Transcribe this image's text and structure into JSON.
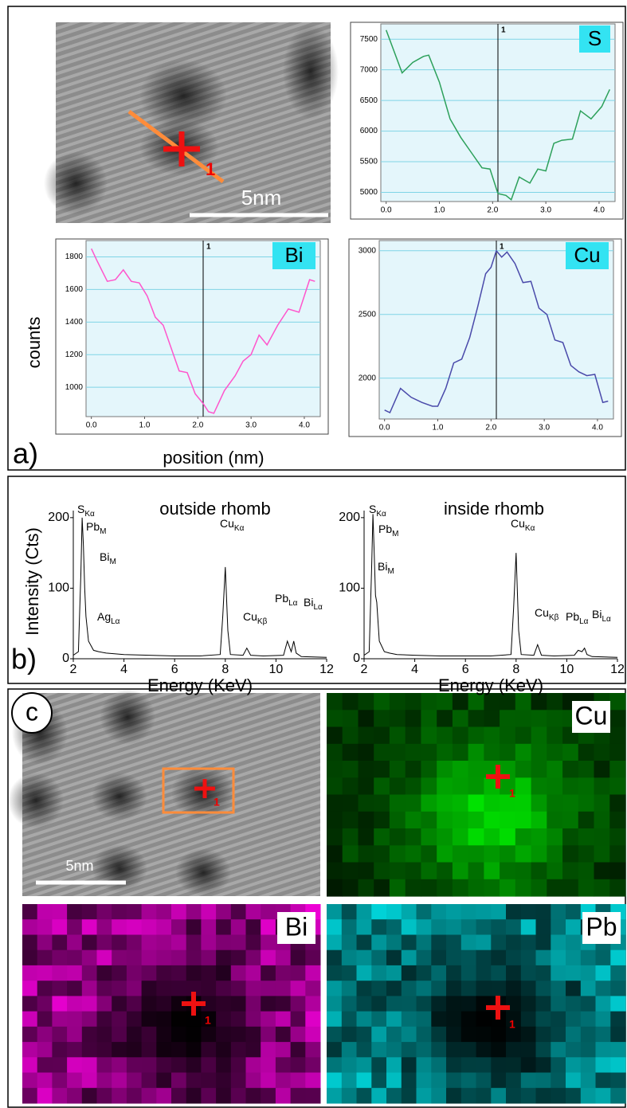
{
  "chart_data": [
    {
      "type": "line",
      "label": "S",
      "color": "#2ca05a",
      "grid": true,
      "x": [
        0,
        0.3,
        0.5,
        0.7,
        0.8,
        1.0,
        1.2,
        1.4,
        1.6,
        1.8,
        1.95,
        2.1,
        2.25,
        2.35,
        2.5,
        2.7,
        2.85,
        3.0,
        3.15,
        3.3,
        3.5,
        3.65,
        3.85,
        4.05,
        4.2
      ],
      "values": [
        7650,
        6950,
        7120,
        7220,
        7240,
        6800,
        6200,
        5900,
        5650,
        5400,
        5380,
        4980,
        4950,
        4880,
        5250,
        5150,
        5380,
        5350,
        5800,
        5850,
        5870,
        6330,
        6200,
        6400,
        6680
      ],
      "xlim": [
        -0.1,
        4.3
      ],
      "ylim": [
        4850,
        7750
      ],
      "xticks": [
        {
          "value": 0,
          "label": "0.0"
        },
        {
          "value": 1,
          "label": "1.0"
        },
        {
          "value": 2,
          "label": "2.0"
        },
        {
          "value": 3,
          "label": "3.0"
        },
        {
          "value": 4,
          "label": "4.0"
        }
      ],
      "yticks": [
        5000,
        5500,
        6000,
        6500,
        7000,
        7500
      ],
      "marker": {
        "value": 2.1,
        "label": "1"
      }
    },
    {
      "type": "line",
      "label": "Bi",
      "color": "#ff55cc",
      "grid": true,
      "x": [
        0,
        0.1,
        0.3,
        0.45,
        0.6,
        0.75,
        0.9,
        1.05,
        1.2,
        1.35,
        1.5,
        1.65,
        1.8,
        1.95,
        2.1,
        2.2,
        2.3,
        2.5,
        2.7,
        2.85,
        3.0,
        3.15,
        3.3,
        3.5,
        3.7,
        3.9,
        4.1,
        4.2
      ],
      "values": [
        1850,
        1780,
        1650,
        1660,
        1720,
        1650,
        1640,
        1560,
        1430,
        1380,
        1240,
        1100,
        1090,
        960,
        900,
        850,
        840,
        980,
        1070,
        1160,
        1200,
        1320,
        1260,
        1380,
        1480,
        1460,
        1660,
        1650
      ],
      "xlim": [
        -0.1,
        4.3
      ],
      "ylim": [
        820,
        1900
      ],
      "xticks": [
        {
          "value": 0,
          "label": "0.0"
        },
        {
          "value": 1,
          "label": "1.0"
        },
        {
          "value": 2,
          "label": "2.0"
        },
        {
          "value": 3,
          "label": "3.0"
        },
        {
          "value": 4,
          "label": "4.0"
        }
      ],
      "yticks": [
        1000,
        1200,
        1400,
        1600,
        1800
      ],
      "marker": {
        "value": 2.1,
        "label": "1"
      }
    },
    {
      "type": "line",
      "label": "Cu",
      "color": "#4a4aaa",
      "grid": true,
      "x": [
        0,
        0.1,
        0.3,
        0.5,
        0.7,
        0.9,
        1.0,
        1.15,
        1.3,
        1.45,
        1.6,
        1.75,
        1.9,
        2.0,
        2.1,
        2.2,
        2.3,
        2.45,
        2.6,
        2.75,
        2.9,
        3.05,
        3.2,
        3.35,
        3.5,
        3.65,
        3.8,
        3.95,
        4.1,
        4.2
      ],
      "values": [
        1750,
        1730,
        1920,
        1850,
        1810,
        1780,
        1780,
        1920,
        2120,
        2150,
        2320,
        2560,
        2820,
        2870,
        3000,
        2950,
        2990,
        2900,
        2750,
        2760,
        2550,
        2500,
        2300,
        2280,
        2100,
        2050,
        2020,
        2030,
        1810,
        1820
      ],
      "xlim": [
        -0.1,
        4.3
      ],
      "ylim": [
        1680,
        3080
      ],
      "xticks": [
        {
          "value": 0,
          "label": "0.0"
        },
        {
          "value": 1,
          "label": "1.0"
        },
        {
          "value": 2,
          "label": "2.0"
        },
        {
          "value": 3,
          "label": "3.0"
        },
        {
          "value": 4,
          "label": "4.0"
        }
      ],
      "yticks": [
        2000,
        2500,
        3000
      ],
      "marker": {
        "value": 2.1,
        "label": "1"
      }
    },
    {
      "type": "spectrum",
      "title": "outside rhomb",
      "x_label": "Energy (KeV)",
      "color": "#000000",
      "grid": false,
      "x": [
        2,
        2.2,
        2.3,
        2.35,
        2.4,
        2.45,
        2.5,
        2.6,
        2.8,
        3.0,
        3.3,
        4,
        5,
        6,
        7,
        7.8,
        7.9,
        8.0,
        8.1,
        8.2,
        8.7,
        8.85,
        9.0,
        9.5,
        10.3,
        10.45,
        10.6,
        10.7,
        10.8,
        11,
        12
      ],
      "values": [
        5,
        10,
        120,
        200,
        160,
        100,
        60,
        25,
        12,
        10,
        8,
        6,
        5,
        4,
        4,
        6,
        60,
        130,
        40,
        6,
        5,
        15,
        5,
        4,
        5,
        25,
        10,
        25,
        8,
        3,
        2
      ],
      "xlim": [
        2,
        12
      ],
      "ylim": [
        0,
        210
      ],
      "xticks": [
        2,
        4,
        6,
        8,
        10,
        12
      ],
      "yticks": [
        0,
        100,
        200
      ],
      "annotations": [
        {
          "text": "S",
          "sub": "Kα"
        },
        {
          "text": "Pb",
          "sub": "M"
        },
        {
          "text": "Bi",
          "sub": "M"
        },
        {
          "text": "Ag",
          "sub": "Lα"
        },
        {
          "text": "Cu",
          "sub": "Kα"
        },
        {
          "text": "Cu",
          "sub": "Kβ"
        },
        {
          "text": "Pb",
          "sub": "Lα"
        },
        {
          "text": "Bi",
          "sub": "Lα"
        }
      ]
    },
    {
      "type": "spectrum",
      "title": "inside rhomb",
      "x_label": "Energy (KeV)",
      "color": "#000000",
      "grid": false,
      "x": [
        2,
        2.2,
        2.3,
        2.35,
        2.4,
        2.45,
        2.5,
        2.6,
        2.8,
        3.0,
        3.3,
        4,
        5,
        6,
        7,
        7.8,
        7.9,
        8.0,
        8.1,
        8.2,
        8.7,
        8.85,
        9.0,
        9.5,
        10.3,
        10.45,
        10.6,
        10.7,
        10.8,
        11,
        12
      ],
      "values": [
        5,
        10,
        130,
        205,
        150,
        90,
        80,
        25,
        10,
        8,
        6,
        5,
        4,
        4,
        4,
        6,
        70,
        150,
        40,
        6,
        5,
        20,
        5,
        4,
        5,
        12,
        10,
        15,
        6,
        3,
        2
      ],
      "xlim": [
        2,
        12
      ],
      "ylim": [
        0,
        210
      ],
      "xticks": [
        2,
        4,
        6,
        8,
        10,
        12
      ],
      "yticks": [
        0,
        100,
        200
      ],
      "annotations": [
        {
          "text": "S",
          "sub": "Kα"
        },
        {
          "text": "Pb",
          "sub": "M"
        },
        {
          "text": "Bi",
          "sub": "M"
        },
        {
          "text": "Cu",
          "sub": "Kα"
        },
        {
          "text": "Cu",
          "sub": "Kβ"
        },
        {
          "text": "Pb",
          "sub": "Lα"
        },
        {
          "text": "Bi",
          "sub": "Lα"
        }
      ]
    }
  ],
  "panel_a": {
    "label": "a)",
    "y_label": "counts",
    "x_label": "position (nm)",
    "image": {
      "marker": "1",
      "scale_bar": "5nm"
    }
  },
  "panel_b": {
    "label": "b)",
    "y_label": "Intensity (Cts)"
  },
  "panel_c": {
    "label": "c",
    "image": {
      "marker": "1",
      "scale_bar": "5nm"
    },
    "maps": [
      {
        "element": "Cu",
        "marker": "1"
      },
      {
        "element": "Bi",
        "marker": "1"
      },
      {
        "element": "Pb",
        "marker": "1"
      }
    ]
  }
}
